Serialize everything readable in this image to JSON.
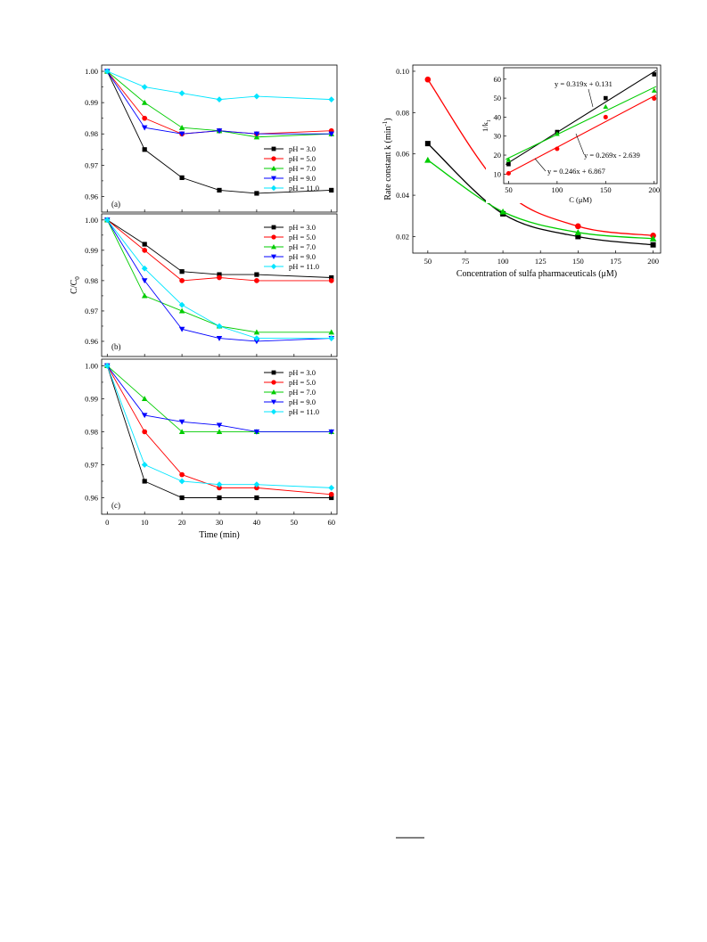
{
  "series_styles": [
    {
      "name": "pH = 3.0",
      "color": "#000000",
      "marker": "square"
    },
    {
      "name": "pH = 5.0",
      "color": "#ff0000",
      "marker": "circle"
    },
    {
      "name": "pH = 7.0",
      "color": "#00cc00",
      "marker": "triangle-up"
    },
    {
      "name": "pH = 9.0",
      "color": "#0000ff",
      "marker": "triangle-down"
    },
    {
      "name": "pH = 11.0",
      "color": "#00e5ff",
      "marker": "diamond"
    }
  ],
  "chart_data": [
    {
      "type": "line",
      "panel_label": "(a)",
      "x": [
        0,
        10,
        20,
        30,
        40,
        60
      ],
      "ylim": [
        0.955,
        1.002
      ],
      "yticks": [
        "1.00",
        "0.99",
        "0.98",
        "0.97",
        "0.96"
      ],
      "series": [
        {
          "name": "pH = 3.0",
          "values": [
            1.0,
            0.975,
            0.966,
            0.962,
            0.961,
            0.962
          ]
        },
        {
          "name": "pH = 5.0",
          "values": [
            1.0,
            0.985,
            0.98,
            0.981,
            0.98,
            0.981
          ]
        },
        {
          "name": "pH = 7.0",
          "values": [
            1.0,
            0.99,
            0.982,
            0.981,
            0.979,
            0.98
          ]
        },
        {
          "name": "pH = 9.0",
          "values": [
            1.0,
            0.982,
            0.98,
            0.981,
            0.98,
            0.98
          ]
        },
        {
          "name": "pH = 11.0",
          "values": [
            1.0,
            0.995,
            0.993,
            0.991,
            0.992,
            0.991
          ]
        }
      ]
    },
    {
      "type": "line",
      "panel_label": "(b)",
      "x": [
        0,
        10,
        20,
        30,
        40,
        60
      ],
      "ylim": [
        0.955,
        1.002
      ],
      "yticks": [
        "1.00",
        "0.99",
        "0.98",
        "0.97",
        "0.96"
      ],
      "ylabel": "C/C",
      "ylabel_sub": "0",
      "series": [
        {
          "name": "pH = 3.0",
          "values": [
            1.0,
            0.992,
            0.983,
            0.982,
            0.982,
            0.981
          ]
        },
        {
          "name": "pH = 5.0",
          "values": [
            1.0,
            0.99,
            0.98,
            0.981,
            0.98,
            0.98
          ]
        },
        {
          "name": "pH = 7.0",
          "values": [
            1.0,
            0.975,
            0.97,
            0.965,
            0.963,
            0.963
          ]
        },
        {
          "name": "pH = 9.0",
          "values": [
            1.0,
            0.98,
            0.964,
            0.961,
            0.96,
            0.961
          ]
        },
        {
          "name": "pH = 11.0",
          "values": [
            1.0,
            0.984,
            0.972,
            0.965,
            0.961,
            0.961
          ]
        }
      ]
    },
    {
      "type": "line",
      "panel_label": "(c)",
      "x": [
        0,
        10,
        20,
        30,
        40,
        60
      ],
      "ylim": [
        0.955,
        1.002
      ],
      "yticks": [
        "1.00",
        "0.99",
        "0.98",
        "0.97",
        "0.96"
      ],
      "xlabel": "Time (min)",
      "xticks": [
        "0",
        "10",
        "20",
        "30",
        "40",
        "50",
        "60"
      ],
      "series": [
        {
          "name": "pH = 3.0",
          "values": [
            1.0,
            0.965,
            0.96,
            0.96,
            0.96,
            0.96
          ]
        },
        {
          "name": "pH = 5.0",
          "values": [
            1.0,
            0.98,
            0.967,
            0.963,
            0.963,
            0.961
          ]
        },
        {
          "name": "pH = 7.0",
          "values": [
            1.0,
            0.99,
            0.98,
            0.98,
            0.98,
            0.98
          ]
        },
        {
          "name": "pH = 9.0",
          "values": [
            1.0,
            0.985,
            0.983,
            0.982,
            0.98,
            0.98
          ]
        },
        {
          "name": "pH = 11.0",
          "values": [
            1.0,
            0.97,
            0.965,
            0.964,
            0.964,
            0.963
          ]
        }
      ]
    },
    {
      "type": "scatter",
      "xlabel": "Concentration of sulfa pharmaceuticals (μM)",
      "ylabel": "Rate constant k (min",
      "ylabel_sup": "-1",
      "ylabel_end": ")",
      "xlim": [
        40,
        205
      ],
      "ylim": [
        0.012,
        0.103
      ],
      "xticks": [
        "50",
        "75",
        "100",
        "125",
        "150",
        "175",
        "200"
      ],
      "yticks": [
        "0.10",
        "0.08",
        "0.06",
        "0.04",
        "0.02"
      ],
      "x": [
        50,
        100,
        150,
        200
      ],
      "series": [
        {
          "values": [
            0.065,
            0.031,
            0.02,
            0.016
          ],
          "color": "#000000",
          "marker": "square"
        },
        {
          "values": [
            0.096,
            0.043,
            0.025,
            0.0205
          ],
          "color": "#ff0000",
          "marker": "circle"
        },
        {
          "values": [
            0.057,
            0.032,
            0.022,
            0.019
          ],
          "color": "#00cc00",
          "marker": "triangle-up"
        }
      ],
      "inset": {
        "type": "scatter",
        "xlabel": "C (μM)",
        "ylabel": "1/k",
        "ylabel_sub": "1",
        "xlim": [
          45,
          203
        ],
        "ylim": [
          5,
          66
        ],
        "xticks": [
          "50",
          "100",
          "150",
          "200"
        ],
        "yticks": [
          "10",
          "20",
          "30",
          "40",
          "50",
          "60"
        ],
        "x": [
          50,
          100,
          150,
          200
        ],
        "series": [
          {
            "values": [
              15.2,
              32.2,
              50.0,
              62.5
            ],
            "color": "#000000",
            "marker": "square",
            "fit": "y = 0.319x + 0.131"
          },
          {
            "values": [
              10.4,
              23.3,
              40.0,
              49.8
            ],
            "color": "#ff0000",
            "marker": "circle",
            "fit": "y = 0.246x + 6.867"
          },
          {
            "values": [
              17.5,
              31.2,
              45.5,
              54.0
            ],
            "color": "#00cc00",
            "marker": "triangle-up",
            "fit": "y = 0.269x - 2.639"
          }
        ]
      }
    }
  ]
}
